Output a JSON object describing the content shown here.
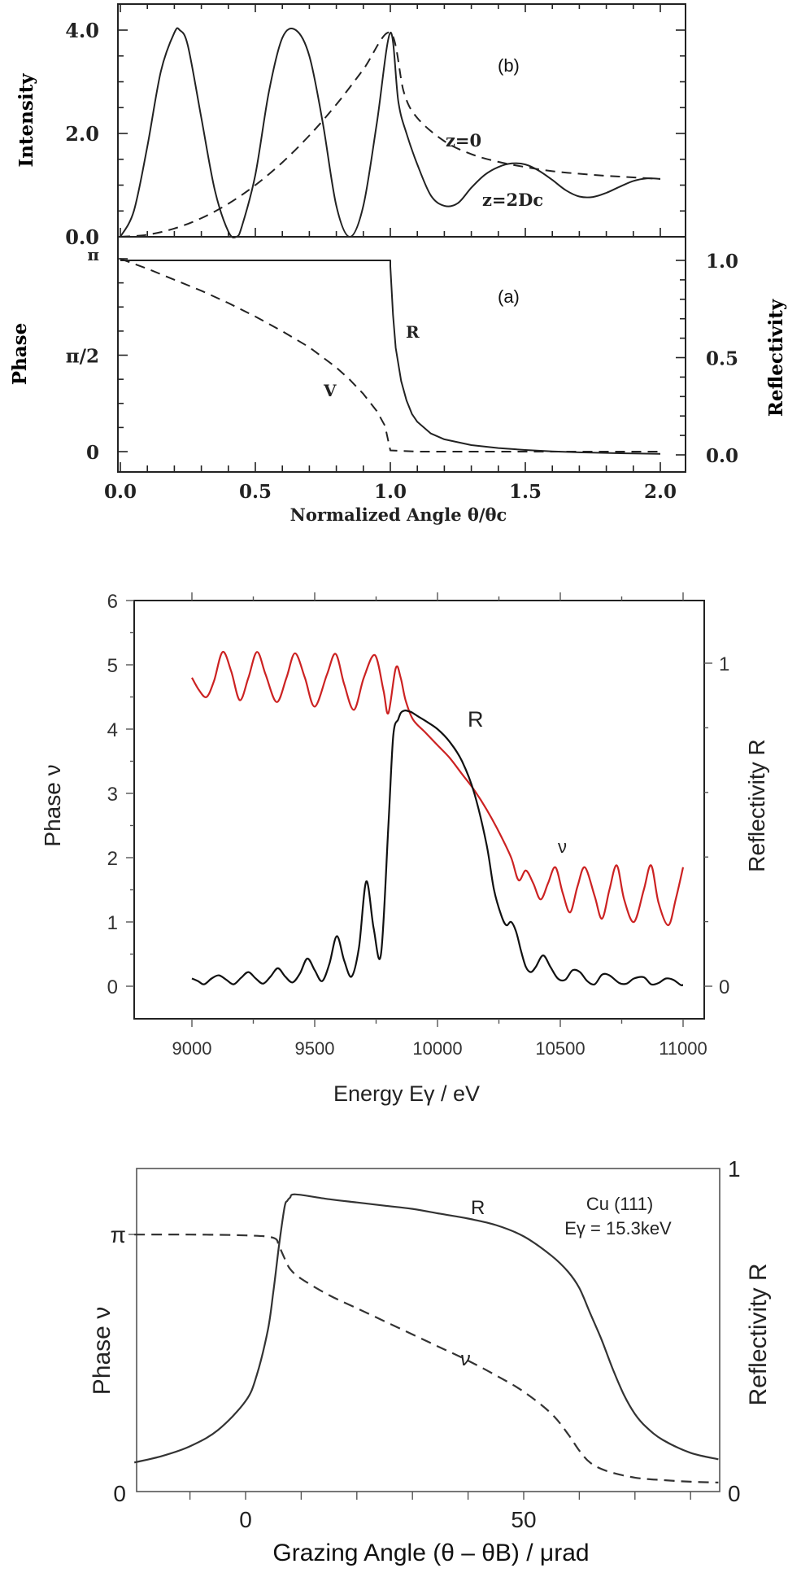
{
  "chart_data": [
    {
      "id": "fig1b",
      "type": "line",
      "panel_label": "(b)",
      "xlabel": "Normalized Angle θ/θc",
      "ylabel": "Intensity",
      "xlim": [
        0.0,
        2.0
      ],
      "ylim": [
        0.0,
        4.3
      ],
      "yticks": [
        {
          "value": 0.0,
          "label": "0.0"
        },
        {
          "value": 2.0,
          "label": "2.0"
        },
        {
          "value": 4.0,
          "label": "4.0"
        }
      ],
      "series": [
        {
          "name": "z=2Dc",
          "style": "solid",
          "annotation": "z=2Dc",
          "x": [
            0,
            0.05,
            0.1,
            0.15,
            0.2,
            0.22,
            0.25,
            0.3,
            0.35,
            0.4,
            0.43,
            0.45,
            0.5,
            0.55,
            0.6,
            0.65,
            0.7,
            0.75,
            0.8,
            0.85,
            0.9,
            0.95,
            1.0,
            1.03,
            1.06,
            1.1,
            1.15,
            1.2,
            1.25,
            1.3,
            1.35,
            1.4,
            1.45,
            1.5,
            1.55,
            1.6,
            1.65,
            1.7,
            1.75,
            1.8,
            1.85,
            1.9,
            1.95,
            2.0
          ],
          "y": [
            0.0,
            0.5,
            1.75,
            3.2,
            3.95,
            4.0,
            3.7,
            2.3,
            0.9,
            0.1,
            0.0,
            0.2,
            1.2,
            2.8,
            3.85,
            4.0,
            3.5,
            2.2,
            0.6,
            0.0,
            0.6,
            2.2,
            3.95,
            2.6,
            2.0,
            1.4,
            0.8,
            0.6,
            0.65,
            0.95,
            1.2,
            1.35,
            1.42,
            1.4,
            1.28,
            1.1,
            0.9,
            0.78,
            0.77,
            0.85,
            0.97,
            1.08,
            1.13,
            1.12
          ]
        },
        {
          "name": "z=0",
          "style": "dashed",
          "annotation": "z=0",
          "x": [
            0,
            0.1,
            0.2,
            0.3,
            0.4,
            0.5,
            0.6,
            0.7,
            0.8,
            0.9,
            1.0,
            1.05,
            1.1,
            1.2,
            1.3,
            1.4,
            1.5,
            1.6,
            1.7,
            1.8,
            1.9,
            2.0
          ],
          "y": [
            0.0,
            0.04,
            0.16,
            0.36,
            0.64,
            1.0,
            1.44,
            1.96,
            2.56,
            3.24,
            3.95,
            2.8,
            2.3,
            1.85,
            1.6,
            1.45,
            1.35,
            1.27,
            1.22,
            1.18,
            1.15,
            1.12
          ]
        }
      ]
    },
    {
      "id": "fig1a",
      "type": "line",
      "panel_label": "(a)",
      "xlabel": "Normalized Angle θ/θc",
      "ylabel": "Phase",
      "ylabel_right": "Reflectivity",
      "xlim": [
        0.0,
        2.0
      ],
      "ylim": [
        0,
        3.14159
      ],
      "ylim_right": [
        0.0,
        1.0
      ],
      "xticks": [
        {
          "value": 0.0,
          "label": "0.0"
        },
        {
          "value": 0.5,
          "label": "0.5"
        },
        {
          "value": 1.0,
          "label": "1.0"
        },
        {
          "value": 1.5,
          "label": "1.5"
        },
        {
          "value": 2.0,
          "label": "2.0"
        }
      ],
      "yticks": [
        {
          "value": 0,
          "label": "0"
        },
        {
          "value": 1.5708,
          "label": "π/2"
        },
        {
          "value": 3.14159,
          "label": "π"
        }
      ],
      "yticks_right": [
        {
          "value": 0.0,
          "label": "0.0"
        },
        {
          "value": 0.5,
          "label": "0.5"
        },
        {
          "value": 1.0,
          "label": "1.0"
        }
      ],
      "series": [
        {
          "name": "R",
          "axis": "right",
          "style": "solid",
          "annotation": "R",
          "x": [
            0,
            0.5,
            1.0,
            1.0,
            1.01,
            1.02,
            1.04,
            1.06,
            1.08,
            1.1,
            1.15,
            1.2,
            1.3,
            1.4,
            1.5,
            1.6,
            1.7,
            1.8,
            1.9,
            2.0
          ],
          "y": [
            1.0,
            1.0,
            1.0,
            0.97,
            0.72,
            0.55,
            0.38,
            0.28,
            0.21,
            0.17,
            0.11,
            0.08,
            0.05,
            0.035,
            0.025,
            0.018,
            0.013,
            0.01,
            0.007,
            0.005
          ]
        },
        {
          "name": "v",
          "axis": "left",
          "style": "dashed",
          "annotation": "V",
          "x": [
            0,
            0.1,
            0.2,
            0.3,
            0.4,
            0.5,
            0.6,
            0.7,
            0.8,
            0.85,
            0.9,
            0.95,
            0.98,
            1.0,
            1.1,
            1.5,
            2.0
          ],
          "y": [
            3.14159,
            2.98,
            2.8,
            2.62,
            2.42,
            2.2,
            1.96,
            1.7,
            1.37,
            1.17,
            0.94,
            0.66,
            0.42,
            0.02,
            0.0,
            0.0,
            0.0
          ]
        }
      ]
    },
    {
      "id": "fig2",
      "type": "line",
      "xlabel": "Energy Eγ / eV",
      "ylabel": "Phase ν",
      "ylabel_right": "Reflectivity R",
      "xlim": [
        8750,
        11250
      ],
      "ylim": [
        -0.5,
        6
      ],
      "ylim_right": [
        -0.1,
        1.25
      ],
      "xticks": [
        {
          "value": 9000,
          "label": "9000"
        },
        {
          "value": 9500,
          "label": "9500"
        },
        {
          "value": 10000,
          "label": "10000"
        },
        {
          "value": 10500,
          "label": "10500"
        },
        {
          "value": 11000,
          "label": "11000"
        }
      ],
      "yticks": [
        {
          "value": 0,
          "label": "0"
        },
        {
          "value": 1,
          "label": "1"
        },
        {
          "value": 2,
          "label": "2"
        },
        {
          "value": 3,
          "label": "3"
        },
        {
          "value": 4,
          "label": "4"
        },
        {
          "value": 5,
          "label": "5"
        },
        {
          "value": 6,
          "label": "6"
        }
      ],
      "yticks_right": [
        {
          "value": 0,
          "label": "0"
        },
        {
          "value": 1,
          "label": "1"
        }
      ],
      "series": [
        {
          "name": "ν",
          "axis": "left",
          "color": "#cc2222",
          "annotation": "ν",
          "x": [
            9000,
            9030,
            9060,
            9090,
            9125,
            9160,
            9195,
            9230,
            9265,
            9300,
            9345,
            9385,
            9420,
            9460,
            9500,
            9550,
            9585,
            9620,
            9660,
            9700,
            9745,
            9780,
            9800,
            9830,
            9850,
            9870,
            9900,
            9950,
            10000,
            10050,
            10100,
            10150,
            10200,
            10250,
            10300,
            10330,
            10360,
            10390,
            10420,
            10450,
            10480,
            10510,
            10540,
            10570,
            10600,
            10640,
            10670,
            10700,
            10730,
            10760,
            10800,
            10840,
            10870,
            10900,
            10940,
            10970,
            11000
          ],
          "y": [
            4.8,
            4.6,
            4.5,
            4.75,
            5.2,
            4.9,
            4.45,
            4.8,
            5.2,
            4.85,
            4.42,
            4.8,
            5.18,
            4.8,
            4.35,
            4.85,
            5.17,
            4.7,
            4.3,
            4.8,
            5.15,
            4.6,
            4.25,
            4.95,
            4.8,
            4.45,
            4.15,
            3.95,
            3.75,
            3.55,
            3.3,
            3.05,
            2.75,
            2.4,
            2.0,
            1.65,
            1.8,
            1.6,
            1.35,
            1.6,
            1.85,
            1.45,
            1.15,
            1.55,
            1.85,
            1.4,
            1.05,
            1.5,
            1.88,
            1.35,
            1.0,
            1.5,
            1.88,
            1.3,
            0.95,
            1.35,
            1.85
          ]
        },
        {
          "name": "R",
          "axis": "left_scaled",
          "color": "#111111",
          "annotation": "R",
          "x": [
            9000,
            9025,
            9050,
            9080,
            9110,
            9140,
            9170,
            9200,
            9230,
            9260,
            9290,
            9320,
            9350,
            9380,
            9410,
            9440,
            9470,
            9500,
            9530,
            9560,
            9590,
            9620,
            9650,
            9680,
            9710,
            9740,
            9770,
            9800,
            9820,
            9840,
            9850,
            9860,
            9870,
            9880,
            9890,
            9900,
            9920,
            9950,
            10000,
            10050,
            10100,
            10150,
            10200,
            10230,
            10260,
            10280,
            10300,
            10320,
            10340,
            10360,
            10380,
            10400,
            10430,
            10460,
            10490,
            10520,
            10550,
            10580,
            10610,
            10640,
            10670,
            10700,
            10740,
            10770,
            10800,
            10840,
            10870,
            10900,
            10930,
            10960,
            10990,
            11000
          ],
          "y": [
            0.12,
            0.08,
            0.03,
            0.12,
            0.17,
            0.1,
            0.03,
            0.13,
            0.22,
            0.12,
            0.04,
            0.15,
            0.28,
            0.15,
            0.06,
            0.2,
            0.43,
            0.25,
            0.08,
            0.35,
            0.78,
            0.4,
            0.15,
            0.6,
            1.63,
            0.9,
            0.5,
            2.5,
            3.9,
            4.15,
            4.25,
            4.28,
            4.29,
            4.28,
            4.27,
            4.25,
            4.2,
            4.13,
            4.0,
            3.8,
            3.5,
            3.0,
            2.2,
            1.5,
            1.1,
            0.95,
            1.0,
            0.85,
            0.55,
            0.3,
            0.22,
            0.3,
            0.48,
            0.3,
            0.12,
            0.1,
            0.25,
            0.22,
            0.08,
            0.03,
            0.18,
            0.17,
            0.05,
            0.04,
            0.12,
            0.14,
            0.03,
            0.05,
            0.12,
            0.1,
            0.02,
            0.02
          ]
        }
      ]
    },
    {
      "id": "fig3",
      "type": "line",
      "xlabel": "Grazing Angle (θ – θB) / μrad",
      "ylabel": "Phase ν",
      "ylabel_right": "Reflectivity R",
      "annotation": "Cu (111)",
      "annotation2": "Eγ = 15.3keV",
      "xlim": [
        -20,
        85
      ],
      "ylim": [
        0,
        3.9
      ],
      "ylim_right": [
        0,
        1
      ],
      "xticks": [
        {
          "value": 0,
          "label": "0"
        },
        {
          "value": 50,
          "label": "50"
        }
      ],
      "yticks": [
        {
          "value": 0,
          "label": "0"
        },
        {
          "value": 3.14159,
          "label": "π"
        }
      ],
      "yticks_right": [
        {
          "value": 0,
          "label": "0"
        },
        {
          "value": 1,
          "label": "1"
        }
      ],
      "series": [
        {
          "name": "R",
          "axis": "right",
          "style": "solid",
          "annotation": "R",
          "x": [
            -20,
            -15,
            -10,
            -5,
            0,
            2,
            4,
            5,
            6,
            7,
            7.5,
            8,
            9,
            15,
            20,
            25,
            30,
            35,
            40,
            45,
            50,
            55,
            58,
            60,
            62,
            64,
            66,
            68,
            70,
            72,
            75,
            80,
            85
          ],
          "y": [
            0.09,
            0.11,
            0.14,
            0.19,
            0.28,
            0.36,
            0.5,
            0.62,
            0.76,
            0.88,
            0.9,
            0.91,
            0.92,
            0.905,
            0.895,
            0.885,
            0.875,
            0.86,
            0.845,
            0.825,
            0.79,
            0.73,
            0.68,
            0.63,
            0.55,
            0.47,
            0.38,
            0.3,
            0.24,
            0.2,
            0.16,
            0.12,
            0.1
          ]
        },
        {
          "name": "ν",
          "axis": "left",
          "style": "dashed",
          "annotation": "ν",
          "x": [
            -20,
            -10,
            0,
            5,
            6,
            7,
            8,
            10,
            15,
            20,
            25,
            30,
            35,
            40,
            45,
            50,
            55,
            58,
            60,
            62,
            65,
            70,
            75,
            80,
            85
          ],
          "y": [
            3.14,
            3.14,
            3.13,
            3.1,
            3.0,
            2.85,
            2.72,
            2.6,
            2.4,
            2.24,
            2.08,
            1.92,
            1.76,
            1.6,
            1.42,
            1.22,
            0.95,
            0.7,
            0.5,
            0.35,
            0.25,
            0.17,
            0.14,
            0.12,
            0.11
          ]
        }
      ]
    }
  ]
}
